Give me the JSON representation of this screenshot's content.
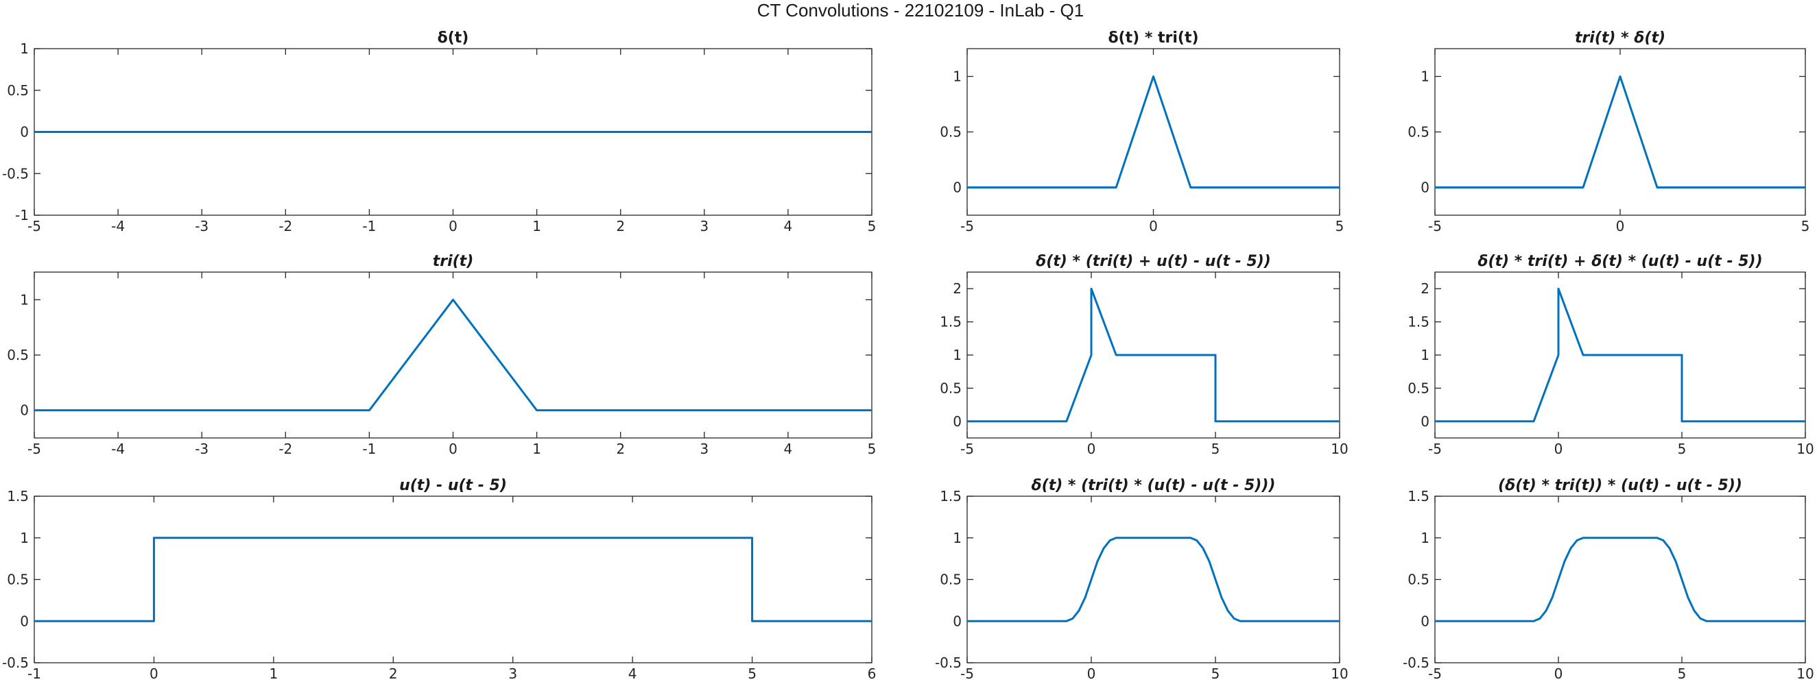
{
  "figure_title": "CT Convolutions - 22102109 - InLab - Q1",
  "colors": {
    "line": "#0072BD",
    "axes": "#262626",
    "background": "#ffffff"
  },
  "chart_data": [
    {
      "type": "line",
      "title": "δ(t)",
      "title_italic": false,
      "xlim": [
        -5,
        5
      ],
      "ylim": [
        -1,
        1
      ],
      "xticks": [
        -5,
        -4,
        -3,
        -2,
        -1,
        0,
        1,
        2,
        3,
        4,
        5
      ],
      "xtick_labels": [
        "-5",
        "-4",
        "-3",
        "-2",
        "-1",
        "0",
        "1",
        "2",
        "3",
        "4",
        "5"
      ],
      "yticks": [
        -1,
        -0.5,
        0,
        0.5,
        1
      ],
      "ytick_labels": [
        "-1",
        "-0.5",
        "0",
        "0.5",
        "1"
      ],
      "series": [
        {
          "x": [
            -5,
            5
          ],
          "y": [
            0,
            0
          ]
        }
      ],
      "grid": false
    },
    {
      "type": "line",
      "title": "δ(t) * tri(t)",
      "title_italic": false,
      "xlim": [
        -5,
        5
      ],
      "ylim": [
        -0.25,
        1.25
      ],
      "xticks": [
        -5,
        0,
        5
      ],
      "xtick_labels": [
        "-5",
        "0",
        "5"
      ],
      "yticks": [
        0,
        0.5,
        1
      ],
      "ytick_labels": [
        "0",
        "0.5",
        "1"
      ],
      "series": [
        {
          "x": [
            -5,
            -1,
            0,
            1,
            5
          ],
          "y": [
            0,
            0,
            1,
            0,
            0
          ]
        }
      ],
      "grid": false
    },
    {
      "type": "line",
      "title": "tri(t) * δ(t)",
      "title_italic": true,
      "xlim": [
        -5,
        5
      ],
      "ylim": [
        -0.25,
        1.25
      ],
      "xticks": [
        -5,
        0,
        5
      ],
      "xtick_labels": [
        "-5",
        "0",
        "5"
      ],
      "yticks": [
        0,
        0.5,
        1
      ],
      "ytick_labels": [
        "0",
        "0.5",
        "1"
      ],
      "series": [
        {
          "x": [
            -5,
            -1,
            0,
            1,
            5
          ],
          "y": [
            0,
            0,
            1,
            0,
            0
          ]
        }
      ],
      "grid": false
    },
    {
      "type": "line",
      "title": "tri(t)",
      "title_italic": true,
      "xlim": [
        -5,
        5
      ],
      "ylim": [
        -0.25,
        1.25
      ],
      "xticks": [
        -5,
        -4,
        -3,
        -2,
        -1,
        0,
        1,
        2,
        3,
        4,
        5
      ],
      "xtick_labels": [
        "-5",
        "-4",
        "-3",
        "-2",
        "-1",
        "0",
        "1",
        "2",
        "3",
        "4",
        "5"
      ],
      "yticks": [
        0,
        0.5,
        1
      ],
      "ytick_labels": [
        "0",
        "0.5",
        "1"
      ],
      "series": [
        {
          "x": [
            -5,
            -1,
            0,
            1,
            5
          ],
          "y": [
            0,
            0,
            1,
            0,
            0
          ]
        }
      ],
      "grid": false
    },
    {
      "type": "line",
      "title": "δ(t) * (tri(t) + u(t) - u(t - 5))",
      "title_italic": true,
      "xlim": [
        -5,
        10
      ],
      "ylim": [
        -0.25,
        2.25
      ],
      "xticks": [
        -5,
        0,
        5,
        10
      ],
      "xtick_labels": [
        "-5",
        "0",
        "5",
        "10"
      ],
      "yticks": [
        0,
        0.5,
        1,
        1.5,
        2
      ],
      "ytick_labels": [
        "0",
        "0.5",
        "1",
        "1.5",
        "2"
      ],
      "series": [
        {
          "x": [
            -5,
            -1,
            0,
            0,
            1,
            5,
            5,
            10
          ],
          "y": [
            0,
            0,
            1,
            2,
            1,
            1,
            0,
            0
          ]
        }
      ],
      "grid": false
    },
    {
      "type": "line",
      "title": "δ(t) * tri(t) + δ(t) * (u(t) - u(t - 5))",
      "title_italic": true,
      "xlim": [
        -5,
        10
      ],
      "ylim": [
        -0.25,
        2.25
      ],
      "xticks": [
        -5,
        0,
        5,
        10
      ],
      "xtick_labels": [
        "-5",
        "0",
        "5",
        "10"
      ],
      "yticks": [
        0,
        0.5,
        1,
        1.5,
        2
      ],
      "ytick_labels": [
        "0",
        "0.5",
        "1",
        "1.5",
        "2"
      ],
      "series": [
        {
          "x": [
            -5,
            -1,
            0,
            0,
            1,
            5,
            5,
            10
          ],
          "y": [
            0,
            0,
            1,
            2,
            1,
            1,
            0,
            0
          ]
        }
      ],
      "grid": false
    },
    {
      "type": "line",
      "title": "u(t) - u(t - 5)",
      "title_italic": true,
      "xlim": [
        -1,
        6
      ],
      "ylim": [
        -0.5,
        1.5
      ],
      "xticks": [
        -1,
        0,
        1,
        2,
        3,
        4,
        5,
        6
      ],
      "xtick_labels": [
        "-1",
        "0",
        "1",
        "2",
        "3",
        "4",
        "5",
        "6"
      ],
      "yticks": [
        -0.5,
        0,
        0.5,
        1,
        1.5
      ],
      "ytick_labels": [
        "-0.5",
        "0",
        "0.5",
        "1",
        "1.5"
      ],
      "series": [
        {
          "x": [
            -1,
            0,
            0,
            5,
            5,
            6
          ],
          "y": [
            0,
            0,
            1,
            1,
            0,
            0
          ]
        }
      ],
      "grid": false
    },
    {
      "type": "line",
      "title": "δ(t) * (tri(t) * (u(t) - u(t - 5)))",
      "title_italic": true,
      "xlim": [
        -5,
        10
      ],
      "ylim": [
        -0.5,
        1.5
      ],
      "xticks": [
        -5,
        0,
        5,
        10
      ],
      "xtick_labels": [
        "-5",
        "0",
        "5",
        "10"
      ],
      "yticks": [
        -0.5,
        0,
        0.5,
        1,
        1.5
      ],
      "ytick_labels": [
        "-0.5",
        "0",
        "0.5",
        "1",
        "1.5"
      ],
      "series": [
        {
          "x": [
            -5,
            -1,
            -0.75,
            -0.5,
            -0.25,
            0,
            0.25,
            0.5,
            0.75,
            1,
            4,
            4.25,
            4.5,
            4.75,
            5,
            5.25,
            5.5,
            5.75,
            6,
            10
          ],
          "y": [
            0,
            0,
            0.03125,
            0.125,
            0.28125,
            0.5,
            0.71875,
            0.875,
            0.96875,
            1,
            1,
            0.96875,
            0.875,
            0.71875,
            0.5,
            0.28125,
            0.125,
            0.03125,
            0,
            0
          ]
        }
      ],
      "grid": false
    },
    {
      "type": "line",
      "title": "(δ(t) * tri(t)) * (u(t) - u(t - 5))",
      "title_italic": true,
      "xlim": [
        -5,
        10
      ],
      "ylim": [
        -0.5,
        1.5
      ],
      "xticks": [
        -5,
        0,
        5,
        10
      ],
      "xtick_labels": [
        "-5",
        "0",
        "5",
        "10"
      ],
      "yticks": [
        -0.5,
        0,
        0.5,
        1,
        1.5
      ],
      "ytick_labels": [
        "-0.5",
        "0",
        "0.5",
        "1",
        "1.5"
      ],
      "series": [
        {
          "x": [
            -5,
            -1,
            -0.75,
            -0.5,
            -0.25,
            0,
            0.25,
            0.5,
            0.75,
            1,
            4,
            4.25,
            4.5,
            4.75,
            5,
            5.25,
            5.5,
            5.75,
            6,
            10
          ],
          "y": [
            0,
            0,
            0.03125,
            0.125,
            0.28125,
            0.5,
            0.71875,
            0.875,
            0.96875,
            1,
            1,
            0.96875,
            0.875,
            0.71875,
            0.5,
            0.28125,
            0.125,
            0.03125,
            0,
            0
          ]
        }
      ],
      "grid": false
    }
  ]
}
